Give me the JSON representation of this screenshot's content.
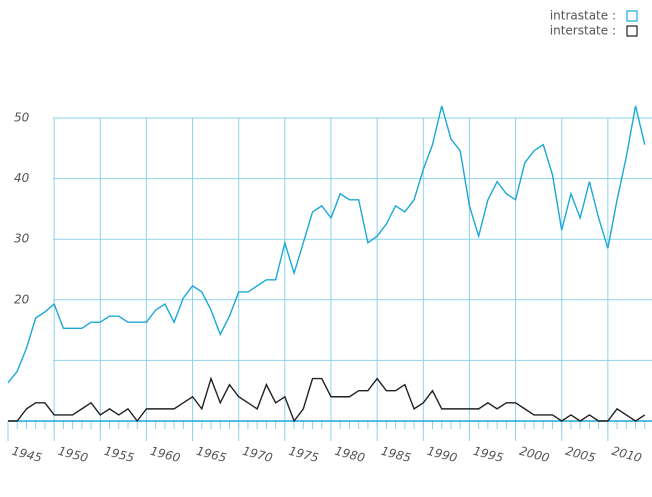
{
  "chart_data": {
    "type": "line",
    "x": [
      1945,
      1946,
      1947,
      1948,
      1949,
      1950,
      1951,
      1952,
      1953,
      1954,
      1955,
      1956,
      1957,
      1958,
      1959,
      1960,
      1961,
      1962,
      1963,
      1964,
      1965,
      1966,
      1967,
      1968,
      1969,
      1970,
      1971,
      1972,
      1973,
      1974,
      1975,
      1976,
      1977,
      1978,
      1979,
      1980,
      1981,
      1982,
      1983,
      1984,
      1985,
      1986,
      1987,
      1988,
      1989,
      1990,
      1991,
      1992,
      1993,
      1994,
      1995,
      1996,
      1997,
      1998,
      1999,
      2000,
      2001,
      2002,
      2003,
      2004,
      2005,
      2006,
      2007,
      2008,
      2009,
      2010,
      2011,
      2012,
      2013,
      2014
    ],
    "series": [
      {
        "name": "intrastate :",
        "color": "#1ba8d6",
        "values": [
          6.3,
          8.2,
          12,
          17,
          18,
          19.3,
          15.3,
          15.3,
          15.3,
          16.3,
          16.3,
          17.3,
          17.3,
          16.3,
          16.3,
          16.3,
          18.3,
          19.3,
          16.3,
          20.3,
          22.3,
          21.3,
          18.3,
          14.3,
          17.3,
          21.3,
          21.3,
          22.3,
          23.3,
          23.3,
          29.4,
          24.4,
          29.4,
          34.5,
          35.5,
          33.5,
          37.5,
          36.5,
          36.5,
          29.4,
          30.5,
          32.5,
          35.5,
          34.5,
          36.5,
          41.5,
          45.6,
          52,
          46.5,
          44.6,
          35.5,
          30.5,
          36.5,
          39.5,
          37.5,
          36.5,
          42.6,
          44.6,
          45.6,
          40.6,
          31.5,
          37.5,
          33.5,
          39.5,
          33.5,
          28.5,
          36.5,
          43.6,
          52,
          45.6
        ]
      },
      {
        "name": "interstate :",
        "color": "#222222",
        "values": [
          0,
          0,
          2,
          3,
          3,
          1,
          1,
          1,
          2,
          3,
          1,
          2,
          1,
          2,
          0,
          2,
          2,
          2,
          2,
          3,
          4,
          2,
          7,
          3,
          6,
          4,
          3,
          2,
          6,
          3,
          4,
          0,
          2,
          7,
          7,
          4,
          4,
          4,
          5,
          5,
          7,
          5,
          5,
          6,
          2,
          3,
          5,
          2,
          2,
          2,
          2,
          2,
          3,
          2,
          3,
          3,
          2,
          1,
          1,
          1,
          0,
          1,
          0,
          1,
          0,
          0,
          2,
          1,
          0,
          1
        ]
      }
    ],
    "xlim": [
      1945,
      2015
    ],
    "xticks": [
      1945,
      1950,
      1955,
      1960,
      1965,
      1970,
      1975,
      1980,
      1985,
      1990,
      1995,
      2000,
      2005,
      2010
    ],
    "ylim": [
      0,
      50
    ],
    "yticks": [
      20,
      30,
      40,
      50
    ],
    "minor_yticks": [
      10
    ],
    "grid": true,
    "grid_color": "#8fd3ec",
    "legend": "top-right"
  }
}
